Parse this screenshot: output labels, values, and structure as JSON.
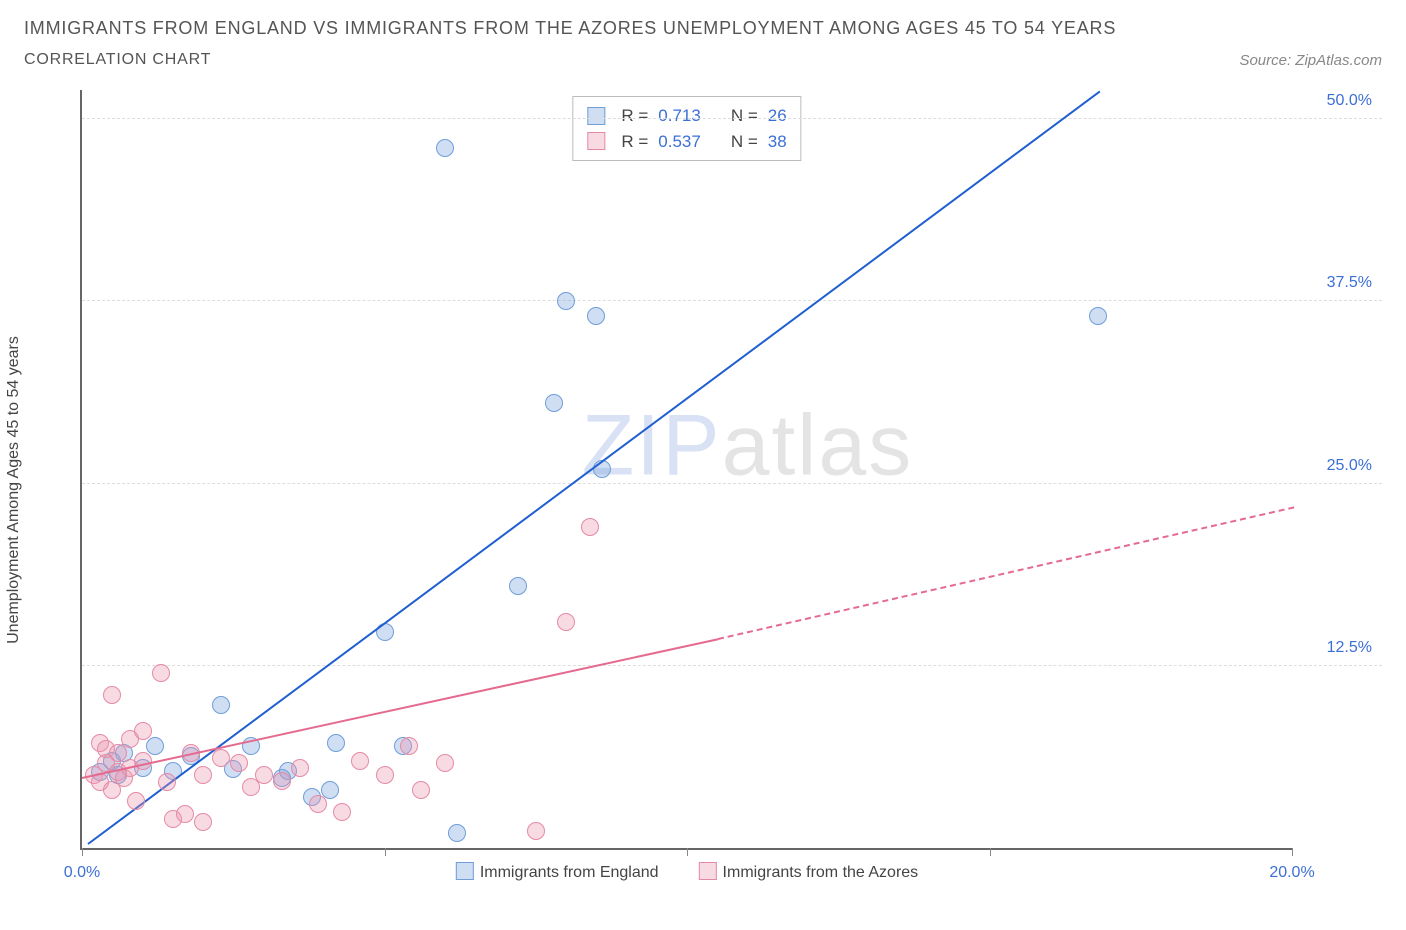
{
  "title": "IMMIGRANTS FROM ENGLAND VS IMMIGRANTS FROM THE AZORES UNEMPLOYMENT AMONG AGES 45 TO 54 YEARS",
  "subtitle": "CORRELATION CHART",
  "source": "Source: ZipAtlas.com",
  "watermark_a": "ZIP",
  "watermark_b": "atlas",
  "chart": {
    "type": "scatter",
    "ylabel": "Unemployment Among Ages 45 to 54 years",
    "xlim": [
      0,
      20
    ],
    "ylim": [
      0,
      52
    ],
    "xticks": [
      0,
      5,
      10,
      15,
      20
    ],
    "xtick_labels": [
      "0.0%",
      "",
      "",
      "",
      "20.0%"
    ],
    "yticks": [
      12.5,
      25.0,
      37.5,
      50.0
    ],
    "ytick_labels": [
      "12.5%",
      "25.0%",
      "37.5%",
      "50.0%"
    ],
    "background_color": "#ffffff",
    "grid_color": "#dddddd",
    "axis_color": "#666666",
    "tick_color": "#3b6fd6",
    "point_radius": 9,
    "series": [
      {
        "name": "Immigrants from England",
        "color_fill": "rgba(120,160,220,0.35)",
        "color_stroke": "#6f9ed8",
        "trend_color": "#1f5fd0",
        "trend_width": 2.5,
        "trend_dash": "none",
        "R": "0.713",
        "N": "26",
        "trend": {
          "x1": 0.1,
          "y1": 0.5,
          "x2": 16.8,
          "y2": 52.0
        },
        "points": [
          [
            0.3,
            5.2
          ],
          [
            0.5,
            6.0
          ],
          [
            0.6,
            5.0
          ],
          [
            0.7,
            6.5
          ],
          [
            1.0,
            5.5
          ],
          [
            1.2,
            7.0
          ],
          [
            1.5,
            5.3
          ],
          [
            1.8,
            6.3
          ],
          [
            2.3,
            9.8
          ],
          [
            2.5,
            5.4
          ],
          [
            2.8,
            7.0
          ],
          [
            3.3,
            4.8
          ],
          [
            3.4,
            5.3
          ],
          [
            3.8,
            3.5
          ],
          [
            4.1,
            4.0
          ],
          [
            4.2,
            7.2
          ],
          [
            5.0,
            14.8
          ],
          [
            5.3,
            7.0
          ],
          [
            6.2,
            1.0
          ],
          [
            6.0,
            48.0
          ],
          [
            7.2,
            18.0
          ],
          [
            7.8,
            30.5
          ],
          [
            8.0,
            37.5
          ],
          [
            8.5,
            36.5
          ],
          [
            8.6,
            26.0
          ],
          [
            16.8,
            36.5
          ]
        ]
      },
      {
        "name": "Immigrants from the Azores",
        "color_fill": "rgba(235,150,175,0.35)",
        "color_stroke": "#e58aa6",
        "trend_color": "#e56a8f",
        "trend_width": 2,
        "trend_dash": "dashed_after",
        "R": "0.537",
        "N": "38",
        "trend": {
          "x1": 0.0,
          "y1": 5.0,
          "x2_solid": 10.5,
          "y2_solid": 14.5,
          "x2": 20.0,
          "y2": 23.5
        },
        "points": [
          [
            0.2,
            5.0
          ],
          [
            0.3,
            4.5
          ],
          [
            0.3,
            7.2
          ],
          [
            0.4,
            5.8
          ],
          [
            0.4,
            6.8
          ],
          [
            0.5,
            4.0
          ],
          [
            0.5,
            10.5
          ],
          [
            0.6,
            5.2
          ],
          [
            0.6,
            6.5
          ],
          [
            0.7,
            4.8
          ],
          [
            0.8,
            5.5
          ],
          [
            0.8,
            7.5
          ],
          [
            0.9,
            3.2
          ],
          [
            1.0,
            6.0
          ],
          [
            1.0,
            8.0
          ],
          [
            1.3,
            12.0
          ],
          [
            1.4,
            4.5
          ],
          [
            1.5,
            2.0
          ],
          [
            1.7,
            2.3
          ],
          [
            1.8,
            6.5
          ],
          [
            2.0,
            5.0
          ],
          [
            2.0,
            1.8
          ],
          [
            2.3,
            6.2
          ],
          [
            2.6,
            5.8
          ],
          [
            2.8,
            4.2
          ],
          [
            3.0,
            5.0
          ],
          [
            3.3,
            4.6
          ],
          [
            3.6,
            5.5
          ],
          [
            3.9,
            3.0
          ],
          [
            4.3,
            2.5
          ],
          [
            4.6,
            6.0
          ],
          [
            5.0,
            5.0
          ],
          [
            5.4,
            7.0
          ],
          [
            5.6,
            4.0
          ],
          [
            6.0,
            5.8
          ],
          [
            7.5,
            1.2
          ],
          [
            8.0,
            15.5
          ],
          [
            8.4,
            22.0
          ]
        ]
      }
    ],
    "legend_swatch_bg": [
      "rgba(120,160,220,0.35)",
      "rgba(235,150,175,0.35)"
    ],
    "legend_swatch_border": [
      "#6f9ed8",
      "#e58aa6"
    ]
  },
  "stat_legend_labels": {
    "R": "R =",
    "N": "N ="
  }
}
